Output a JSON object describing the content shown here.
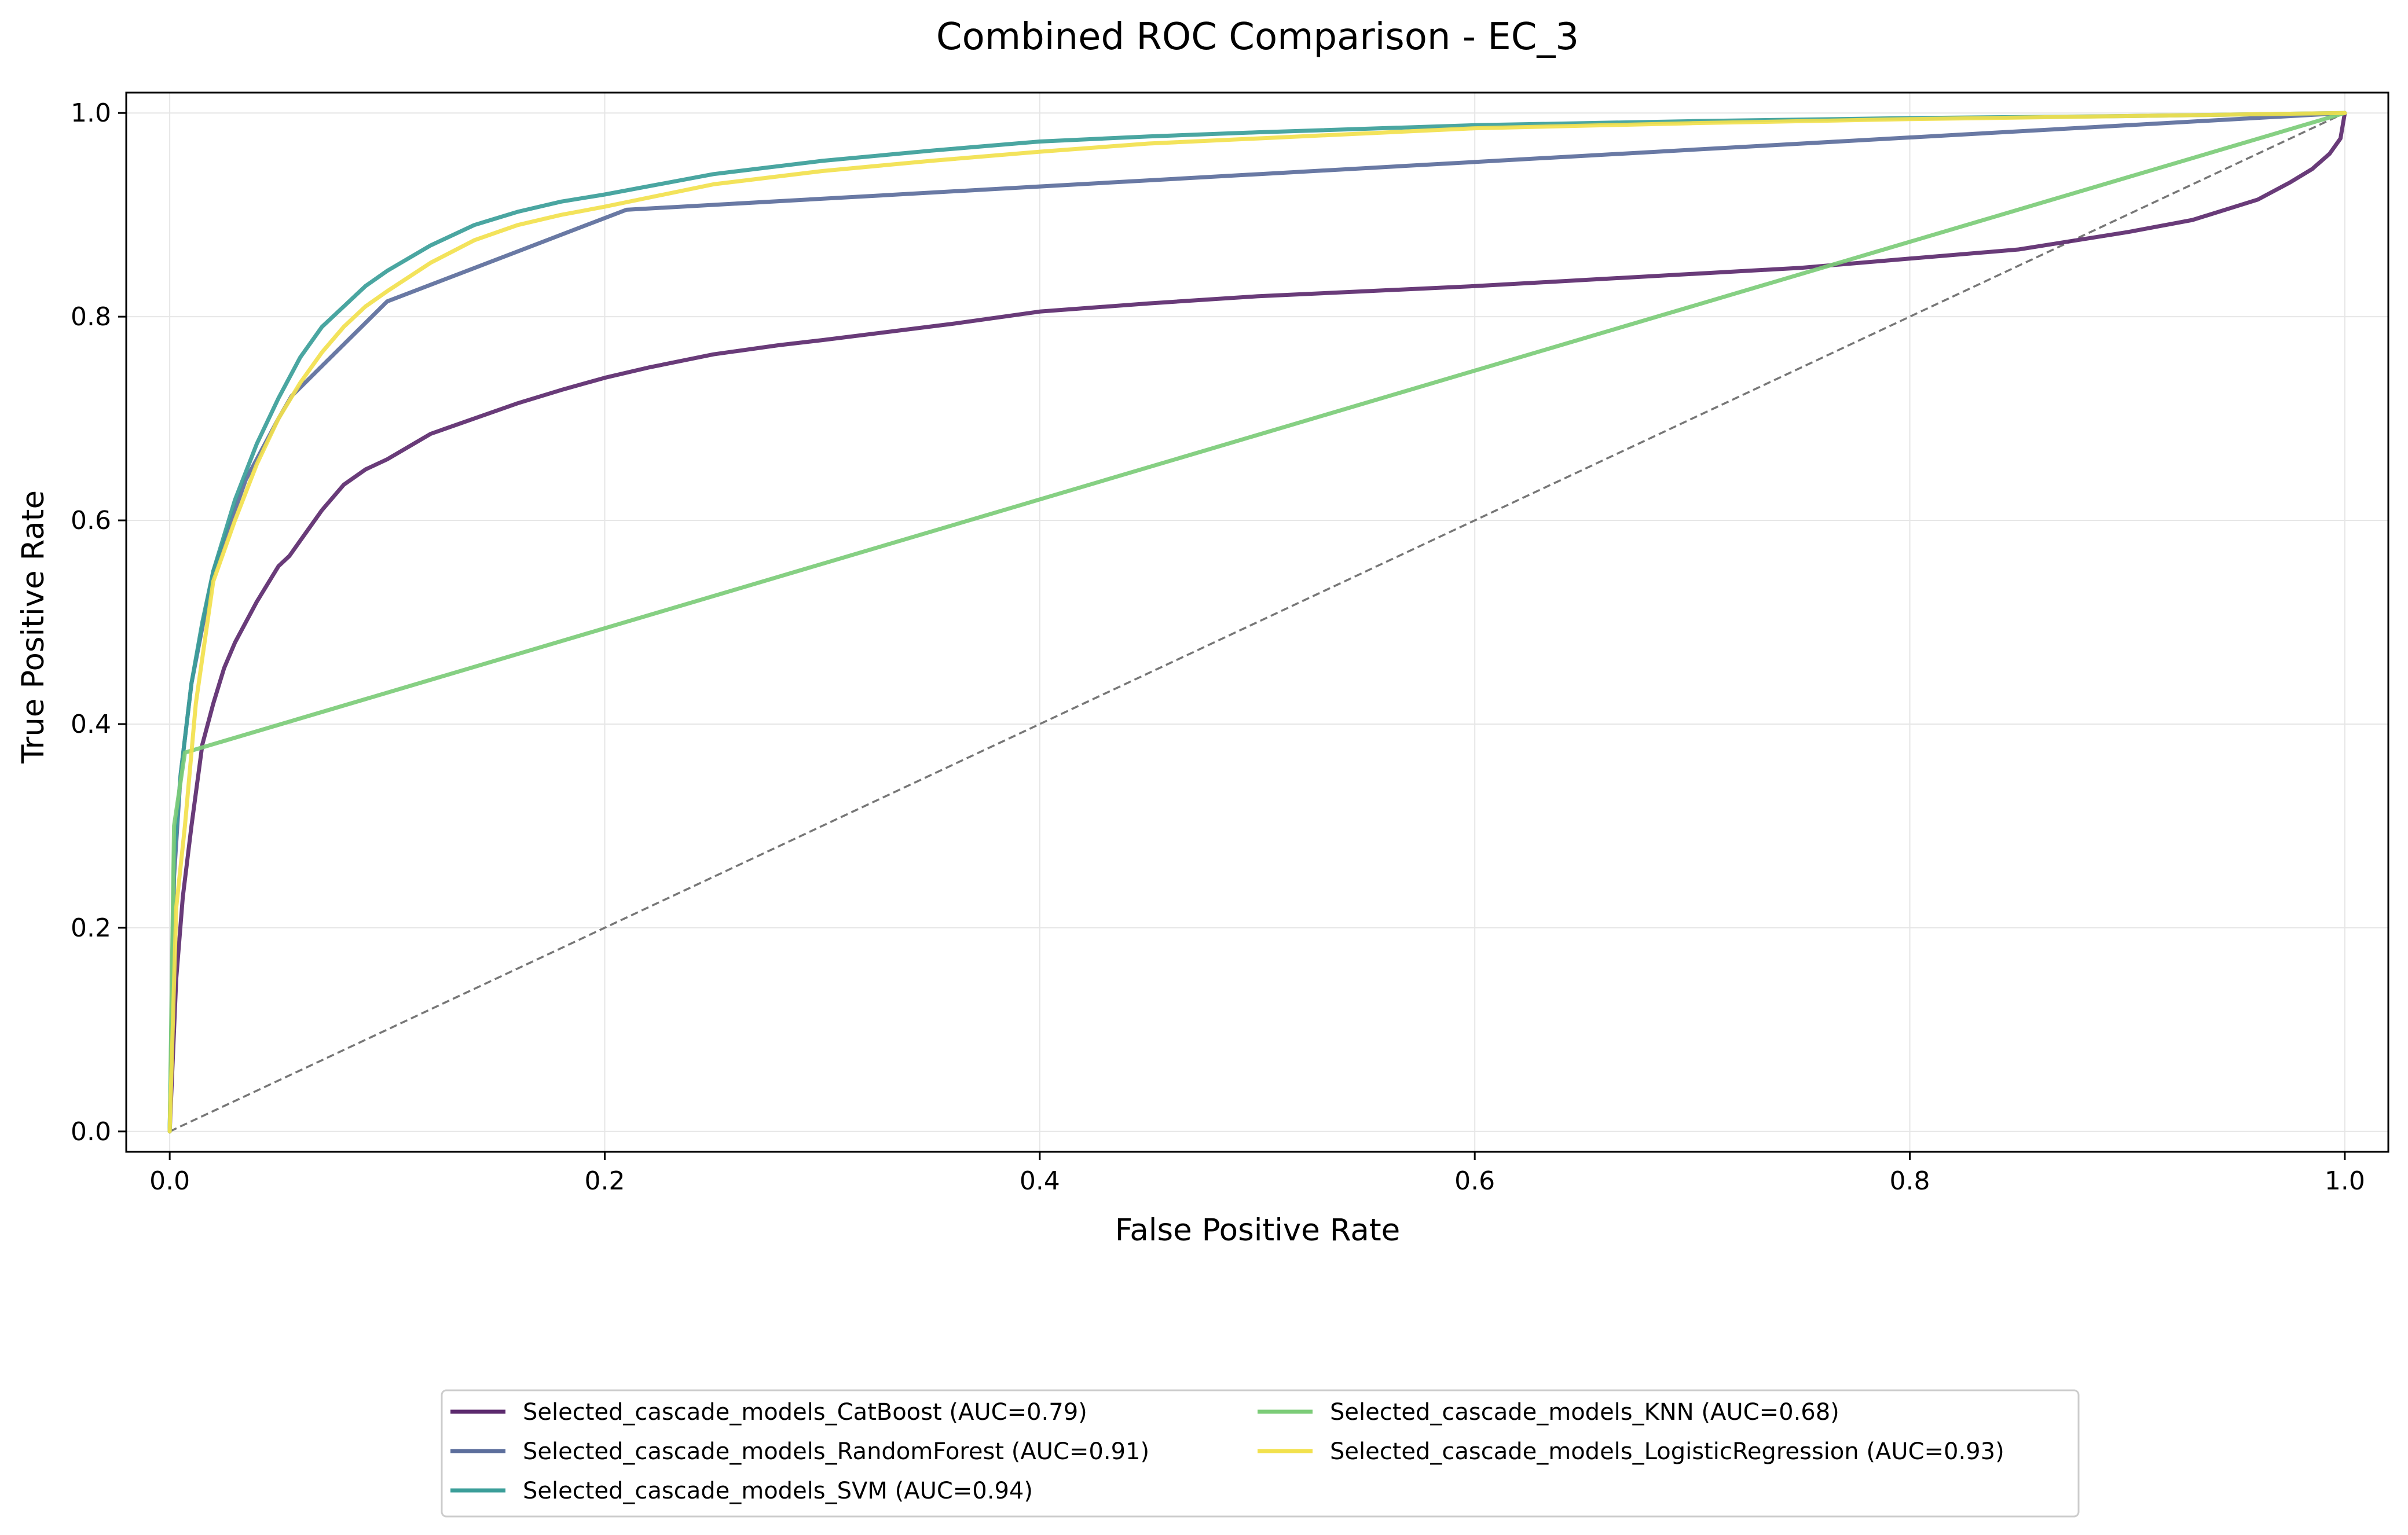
{
  "chart_data": {
    "type": "line",
    "title": "Combined ROC Comparison - EC_3",
    "xlabel": "False Positive Rate",
    "ylabel": "True Positive Rate",
    "xlim": [
      -0.02,
      1.02
    ],
    "ylim": [
      -0.02,
      1.02
    ],
    "xticks": [
      0.0,
      0.2,
      0.4,
      0.6,
      0.8,
      1.0
    ],
    "yticks": [
      0.0,
      0.2,
      0.4,
      0.6,
      0.8,
      1.0
    ],
    "xtick_labels": [
      "0.0",
      "0.2",
      "0.4",
      "0.6",
      "0.8",
      "1.0"
    ],
    "ytick_labels": [
      "0.0",
      "0.2",
      "0.4",
      "0.6",
      "0.8",
      "1.0"
    ],
    "grid": true,
    "legend_position": "bottom-center",
    "diagonal_reference": {
      "x": [
        0,
        1
      ],
      "y": [
        0,
        1
      ],
      "color": "#777777",
      "style": "dashed"
    },
    "series": [
      {
        "name": "Selected_cascade_models_CatBoost (AUC=0.79)",
        "color": "#5c2a6e",
        "x": [
          0,
          0.003,
          0.006,
          0.01,
          0.015,
          0.02,
          0.025,
          0.03,
          0.04,
          0.05,
          0.055,
          0.06,
          0.07,
          0.08,
          0.09,
          0.1,
          0.12,
          0.14,
          0.16,
          0.18,
          0.2,
          0.22,
          0.25,
          0.28,
          0.3,
          0.33,
          0.36,
          0.4,
          0.45,
          0.5,
          0.55,
          0.6,
          0.65,
          0.7,
          0.75,
          0.8,
          0.85,
          0.9,
          0.93,
          0.96,
          0.975,
          0.985,
          0.993,
          0.998,
          1.0
        ],
        "y": [
          0,
          0.15,
          0.23,
          0.3,
          0.38,
          0.42,
          0.455,
          0.48,
          0.52,
          0.555,
          0.565,
          0.58,
          0.61,
          0.635,
          0.65,
          0.66,
          0.685,
          0.7,
          0.715,
          0.728,
          0.74,
          0.75,
          0.763,
          0.772,
          0.777,
          0.785,
          0.793,
          0.805,
          0.813,
          0.82,
          0.825,
          0.83,
          0.836,
          0.842,
          0.848,
          0.857,
          0.866,
          0.883,
          0.895,
          0.915,
          0.932,
          0.945,
          0.96,
          0.975,
          1.0
        ]
      },
      {
        "name": "Selected_cascade_models_RandomForest (AUC=0.91)",
        "color": "#5c6e9c",
        "x": [
          0,
          0.002,
          0.005,
          0.01,
          0.02,
          0.035,
          0.05,
          0.056,
          0.1,
          0.21,
          1.0
        ],
        "y": [
          0,
          0.25,
          0.35,
          0.44,
          0.55,
          0.64,
          0.7,
          0.722,
          0.815,
          0.905,
          1.0
        ]
      },
      {
        "name": "Selected_cascade_models_SVM (AUC=0.94)",
        "color": "#3b9e99",
        "x": [
          0,
          0.002,
          0.005,
          0.01,
          0.015,
          0.02,
          0.03,
          0.04,
          0.05,
          0.06,
          0.07,
          0.08,
          0.09,
          0.1,
          0.12,
          0.14,
          0.16,
          0.18,
          0.2,
          0.25,
          0.3,
          0.35,
          0.4,
          0.45,
          0.5,
          0.6,
          0.7,
          0.8,
          0.9,
          1.0
        ],
        "y": [
          0,
          0.27,
          0.35,
          0.44,
          0.5,
          0.55,
          0.62,
          0.675,
          0.72,
          0.76,
          0.79,
          0.81,
          0.83,
          0.845,
          0.87,
          0.89,
          0.903,
          0.913,
          0.92,
          0.94,
          0.953,
          0.963,
          0.972,
          0.977,
          0.981,
          0.988,
          0.992,
          0.995,
          0.997,
          1.0
        ]
      },
      {
        "name": "Selected_cascade_models_KNN (AUC=0.68)",
        "color": "#7ccc78",
        "x": [
          0,
          0.002,
          0.007,
          1.0
        ],
        "y": [
          0,
          0.3,
          0.372,
          1.0
        ]
      },
      {
        "name": "Selected_cascade_models_LogisticRegression (AUC=0.93)",
        "color": "#f2e14d",
        "x": [
          0,
          0.003,
          0.007,
          0.012,
          0.02,
          0.03,
          0.04,
          0.05,
          0.06,
          0.07,
          0.08,
          0.09,
          0.1,
          0.12,
          0.14,
          0.16,
          0.18,
          0.2,
          0.25,
          0.3,
          0.35,
          0.4,
          0.45,
          0.5,
          0.6,
          0.7,
          0.8,
          0.9,
          1.0
        ],
        "y": [
          0,
          0.22,
          0.3,
          0.42,
          0.54,
          0.6,
          0.655,
          0.7,
          0.735,
          0.765,
          0.79,
          0.81,
          0.825,
          0.853,
          0.875,
          0.89,
          0.9,
          0.908,
          0.93,
          0.943,
          0.953,
          0.962,
          0.97,
          0.975,
          0.985,
          0.99,
          0.994,
          0.997,
          1.0
        ]
      }
    ]
  }
}
